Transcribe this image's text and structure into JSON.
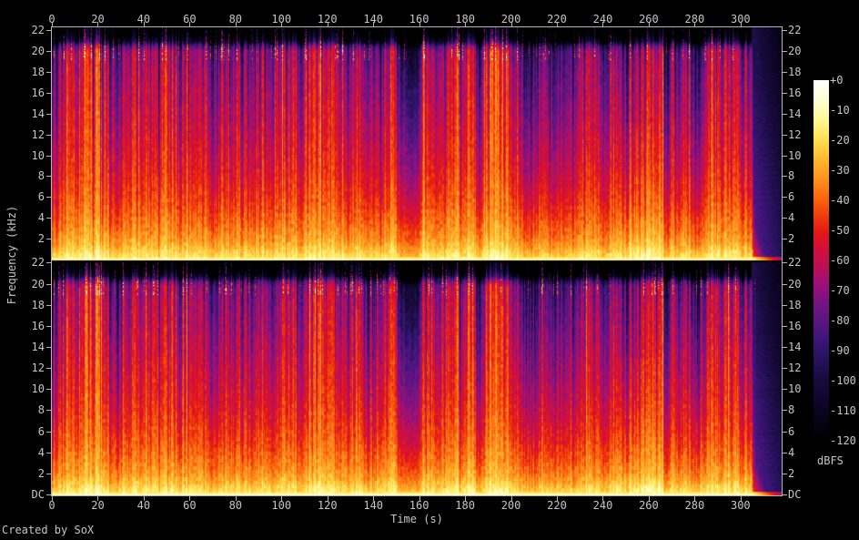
{
  "footer": {
    "credit": "Created by SoX"
  },
  "axes": {
    "time": {
      "label": "Time (s)",
      "ticks": [
        0,
        20,
        40,
        60,
        80,
        100,
        120,
        140,
        160,
        180,
        200,
        220,
        240,
        260,
        280,
        300
      ]
    },
    "frequency": {
      "label": "Frequency (kHz)",
      "panel_ticks": [
        22,
        20,
        18,
        16,
        14,
        12,
        10,
        8,
        6,
        4,
        2
      ],
      "dc_label": "DC"
    }
  },
  "colorbar": {
    "unit": "dBFS",
    "ticks": [
      "+0",
      "-10",
      "-20",
      "-30",
      "-40",
      "-50",
      "-60",
      "-70",
      "-80",
      "-90",
      "-100",
      "-110",
      "-120"
    ]
  },
  "colors": {
    "axis": "#b4b4b4",
    "text": "#c6c6c6",
    "background": "#000000"
  },
  "chart_data": {
    "type": "heatmap",
    "subtype": "stereo-spectrogram",
    "channels": [
      "left",
      "right"
    ],
    "x_axis": {
      "label": "Time (s)",
      "range_s": [
        0,
        318
      ],
      "tick_step_s": 20
    },
    "y_axis": {
      "label": "Frequency (kHz)",
      "range_khz": [
        0,
        22.05
      ],
      "tick_step_khz": 2
    },
    "z_axis": {
      "label": "dBFS",
      "range_db": [
        -120,
        0
      ],
      "tick_step_db": 10
    },
    "content_cutoff_khz": 20.3,
    "palette_stops": [
      [
        0,
        "#ffffff"
      ],
      [
        -8,
        "#ffffc8"
      ],
      [
        -14,
        "#fff58c"
      ],
      [
        -20,
        "#ffde50"
      ],
      [
        -27,
        "#ffb42b"
      ],
      [
        -33,
        "#ff911f"
      ],
      [
        -40,
        "#fa610e"
      ],
      [
        -46,
        "#ee370a"
      ],
      [
        -51,
        "#e31716"
      ],
      [
        -56,
        "#d40f3c"
      ],
      [
        -62,
        "#bc1054"
      ],
      [
        -68,
        "#9b1078"
      ],
      [
        -74,
        "#781383"
      ],
      [
        -80,
        "#5c1581"
      ],
      [
        -86,
        "#40157b"
      ],
      [
        -92,
        "#2a1260"
      ],
      [
        -100,
        "#180b3c"
      ],
      [
        -110,
        "#0a0422"
      ],
      [
        -120,
        "#000000"
      ]
    ],
    "typical_spectrum_db": [
      [
        0,
        -11
      ],
      [
        0.3,
        -14
      ],
      [
        0.7,
        -17
      ],
      [
        1,
        -20
      ],
      [
        1.5,
        -24
      ],
      [
        2,
        -27
      ],
      [
        3,
        -31
      ],
      [
        4,
        -34
      ],
      [
        5,
        -37
      ],
      [
        7,
        -41
      ],
      [
        9,
        -44
      ],
      [
        12,
        -47
      ],
      [
        15,
        -50
      ],
      [
        18,
        -53
      ],
      [
        19.8,
        -56
      ],
      [
        20.3,
        -68
      ],
      [
        20.8,
        -95
      ],
      [
        21.4,
        -110
      ],
      [
        22.05,
        -118
      ]
    ],
    "events": [
      {
        "name": "intro-ramp",
        "t_start": 0,
        "t_end": 7,
        "level_mul": 0.62
      },
      {
        "name": "quiet-gap",
        "t_start": 150.5,
        "t_end": 159.5,
        "level_mul": 0.33
      },
      {
        "name": "dark-section",
        "t_start": 211,
        "t_end": 226,
        "level_mul": 0.62
      },
      {
        "name": "bright-section",
        "t_start": 246,
        "t_end": 265,
        "db_boost": 4,
        "max_khz": 13
      },
      {
        "name": "quiet-dip",
        "t_start": 266.6,
        "t_end": 268.4,
        "level_mul": 0.3
      },
      {
        "name": "fade-out",
        "t_start": 304.5,
        "t_end": 318,
        "level_mul": 0
      }
    ]
  }
}
